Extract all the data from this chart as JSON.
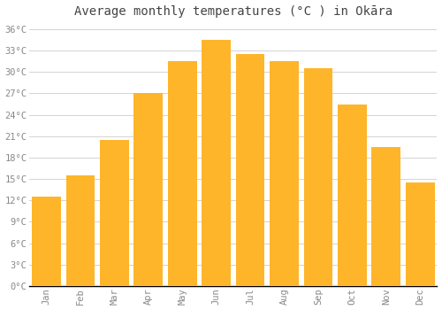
{
  "title": "Average monthly temperatures (°C ) in Okāra",
  "months": [
    "Jan",
    "Feb",
    "Mar",
    "Apr",
    "May",
    "Jun",
    "Jul",
    "Aug",
    "Sep",
    "Oct",
    "Nov",
    "Dec"
  ],
  "values": [
    12.5,
    15.5,
    20.5,
    27.0,
    31.5,
    34.5,
    32.5,
    31.5,
    30.5,
    25.5,
    19.5,
    14.5
  ],
  "bar_color": "#FFA500",
  "bar_color_light": "#FFD166",
  "background_color": "#FFFFFF",
  "grid_color": "#CCCCCC",
  "text_color": "#888888",
  "spine_color": "#000000",
  "ylim": [
    0,
    37
  ],
  "yticks": [
    0,
    3,
    6,
    9,
    12,
    15,
    18,
    21,
    24,
    27,
    30,
    33,
    36
  ],
  "ytick_labels": [
    "0°C",
    "3°C",
    "6°C",
    "9°C",
    "12°C",
    "15°C",
    "18°C",
    "21°C",
    "24°C",
    "27°C",
    "30°C",
    "33°C",
    "36°C"
  ],
  "title_fontsize": 10,
  "tick_fontsize": 7.5,
  "font_family": "monospace"
}
